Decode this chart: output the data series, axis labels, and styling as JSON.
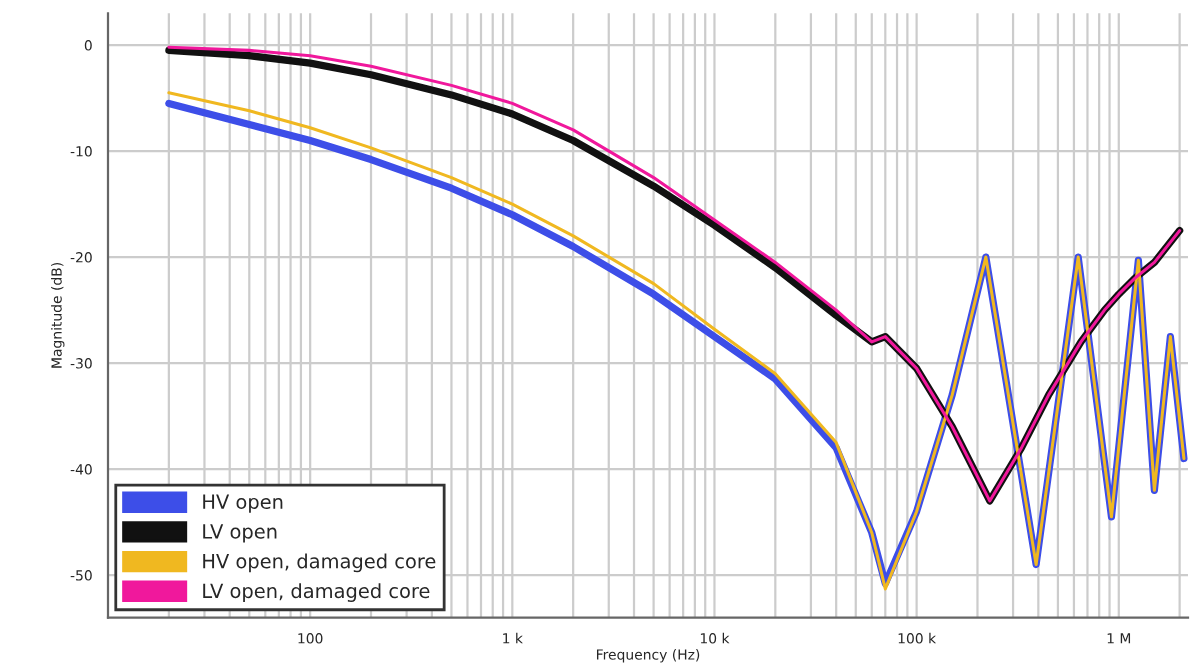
{
  "chart_data": {
    "type": "line",
    "xlabel": "Frequency (Hz)",
    "ylabel": "Magnitude (dB)",
    "log": "x",
    "xlim": [
      10,
      2200000
    ],
    "xticks": [
      {
        "value": 100,
        "label": "100"
      },
      {
        "value": 1000,
        "label": "1 k"
      },
      {
        "value": 10000,
        "label": "10 k"
      },
      {
        "value": 100000,
        "label": "100 k"
      },
      {
        "value": 1000000,
        "label": "1 M"
      }
    ],
    "ylim": [
      -54,
      3
    ],
    "yticks": [
      0,
      -10,
      -20,
      -30,
      -40,
      -50
    ],
    "grid": true,
    "legend": "bottom left",
    "line_style": "solid",
    "marker": "none",
    "series": [
      {
        "name": "HV open",
        "color": "#3d4ee8",
        "x": [
          20,
          50,
          100,
          200,
          500,
          1000,
          2000,
          5000,
          10000,
          20000,
          40000,
          60000,
          70000,
          100000,
          150000,
          220000,
          390000,
          630000,
          920000,
          1250000,
          1500000,
          1800000,
          2100000
        ],
        "values": [
          -5.5,
          -7.5,
          -9,
          -10.8,
          -13.5,
          -16,
          -19,
          -23.5,
          -27.5,
          -31.5,
          -38,
          -46,
          -50.8,
          -44,
          -33,
          -20,
          -49,
          -20,
          -44.5,
          -20.3,
          -42,
          -27.5,
          -39
        ]
      },
      {
        "name": "LV open",
        "color": "#111111",
        "x": [
          20,
          50,
          100,
          200,
          500,
          1000,
          2000,
          5000,
          10000,
          20000,
          40000,
          60000,
          70000,
          100000,
          150000,
          230000,
          330000,
          450000,
          650000,
          850000,
          1000000,
          1200000,
          1500000,
          2000000
        ],
        "values": [
          -0.5,
          -1,
          -1.7,
          -2.8,
          -4.7,
          -6.5,
          -9,
          -13.3,
          -17,
          -21,
          -25.5,
          -28,
          -27.5,
          -30.5,
          -36,
          -43,
          -38,
          -33,
          -28,
          -25,
          -23.5,
          -22,
          -20.5,
          -17.5
        ]
      },
      {
        "name": "HV open, damaged core",
        "color": "#f0b820",
        "x": [
          20,
          50,
          100,
          200,
          500,
          1000,
          2000,
          5000,
          10000,
          20000,
          40000,
          60000,
          70000,
          100000,
          150000,
          220000,
          390000,
          630000,
          920000,
          1250000,
          1500000,
          1800000,
          2100000
        ],
        "values": [
          -4.5,
          -6.2,
          -7.8,
          -9.7,
          -12.5,
          -15,
          -18,
          -22.5,
          -26.8,
          -31,
          -37.5,
          -46,
          -51.3,
          -44,
          -33,
          -20,
          -49,
          -20,
          -44.5,
          -20.3,
          -42,
          -27.5,
          -39
        ]
      },
      {
        "name": "LV open, damaged core",
        "color": "#f0189c",
        "x": [
          20,
          50,
          100,
          200,
          500,
          1000,
          2000,
          5000,
          10000,
          20000,
          40000,
          60000,
          70000,
          100000,
          150000,
          230000,
          330000,
          450000,
          650000,
          850000,
          1000000,
          1200000,
          1500000,
          2000000
        ],
        "values": [
          -0.2,
          -0.5,
          -1,
          -2,
          -3.8,
          -5.5,
          -8,
          -12.5,
          -16.5,
          -20.5,
          -25,
          -28,
          -27.5,
          -30.5,
          -36,
          -43,
          -38,
          -33,
          -28,
          -25,
          -23.5,
          -22,
          -20.5,
          -17.5
        ]
      }
    ]
  }
}
